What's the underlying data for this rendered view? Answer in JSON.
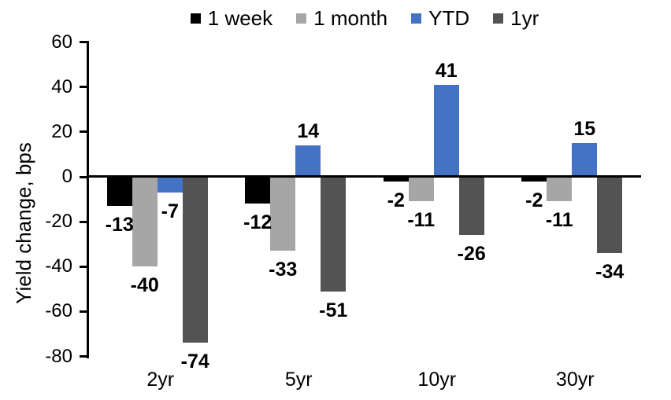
{
  "chart_data": {
    "type": "bar",
    "title": "",
    "ylabel": "Yield change, bps",
    "xlabel": "",
    "categories": [
      "2yr",
      "5yr",
      "10yr",
      "30yr"
    ],
    "series": [
      {
        "name": "1 week",
        "color": "#000000",
        "values": [
          -13,
          -12,
          -2,
          -2
        ]
      },
      {
        "name": "1 month",
        "color": "#A6A6A6",
        "values": [
          -40,
          -33,
          -11,
          -11
        ]
      },
      {
        "name": "YTD",
        "color": "#4472C4",
        "values": [
          -7,
          14,
          41,
          15
        ]
      },
      {
        "name": "1yr",
        "color": "#535353",
        "values": [
          -74,
          -51,
          -26,
          -34
        ]
      }
    ],
    "yticks": [
      60,
      40,
      20,
      0,
      -20,
      -40,
      -60,
      -80
    ],
    "ylim": [
      -80,
      60
    ],
    "grid": false,
    "legend_position": "top",
    "data_labels": "outside-end",
    "axis_color": "#000000",
    "background_color": "#FFFFFF"
  }
}
